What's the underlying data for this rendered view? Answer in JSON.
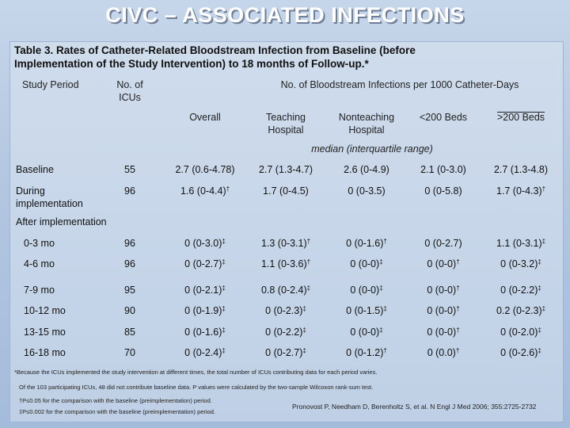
{
  "slide": {
    "title": "CIVC – ASSOCIATED INFECTIONS"
  },
  "table": {
    "caption_line1": "Table 3.  Rates of Catheter-Related Bloodstream Infection from Baseline (before",
    "caption_line2": "Implementation of the Study Intervention) to 18 months of Follow-up.*",
    "headers": {
      "study_period": "Study Period",
      "num_icus_line1": "No. of",
      "num_icus_line2": "ICUs",
      "group_title": "No. of Bloodstream Infections per 1000 Catheter-Days",
      "overall": "Overall",
      "teaching_line1": "Teaching",
      "teaching_line2": "Hospital",
      "nonteaching_line1": "Nonteaching",
      "nonteaching_line2": "Hospital",
      "lt200": "<200 Beds",
      "ge200": ">200 Beds",
      "median_note": "median (interquartile range)"
    },
    "section_after": "After implementation",
    "rows": [
      {
        "period": "Baseline",
        "icus": "55",
        "overall": "2.7 (0.6-4.78)",
        "teaching": "2.7 (1.3-4.7)",
        "nonteaching": "2.6 (0-4.9)",
        "lt200": "2.1 (0-3.0)",
        "ge200": "2.7 (1.3-4.8)"
      },
      {
        "period": "During",
        "period2": "implementation",
        "icus": "96",
        "overall": "1.6 (0-4.4)",
        "overall_mark": "†",
        "teaching": "1.7 (0-4.5)",
        "nonteaching": "0 (0-3.5)",
        "lt200": "0 (0-5.8)",
        "ge200": "1.7 (0-4.3)",
        "ge200_mark": "†"
      },
      {
        "period": "0-3 mo",
        "icus": "96",
        "overall": "0 (0-3.0)",
        "overall_mark": "‡",
        "teaching": "1.3 (0-3.1)",
        "teaching_mark": "†",
        "nonteaching": "0 (0-1.6)",
        "nonteaching_mark": "†",
        "lt200": "0 (0-2.7)",
        "ge200": "1.1 (0-3.1)",
        "ge200_mark": "‡"
      },
      {
        "period": "4-6 mo",
        "icus": "96",
        "overall": "0 (0-2.7)",
        "overall_mark": "‡",
        "teaching": "1.1 (0-3.6)",
        "teaching_mark": "†",
        "nonteaching": "0 (0-0)",
        "nonteaching_mark": "‡",
        "lt200": "0 (0-0)",
        "lt200_mark": "†",
        "ge200": "0 (0-3.2)",
        "ge200_mark": "‡"
      },
      {
        "period": "7-9 mo",
        "icus": "95",
        "overall": "0 (0-2.1)",
        "overall_mark": "‡",
        "teaching": "0.8 (0-2.4)",
        "teaching_mark": "‡",
        "nonteaching": "0 (0-0)",
        "nonteaching_mark": "‡",
        "lt200": "0 (0-0)",
        "lt200_mark": "†",
        "ge200": "0 (0-2.2)",
        "ge200_mark": "‡"
      },
      {
        "period": "10-12 mo",
        "icus": "90",
        "overall": "0 (0-1.9)",
        "overall_mark": "‡",
        "teaching": "0 (0-2.3)",
        "teaching_mark": "‡",
        "nonteaching": "0 (0-1.5)",
        "nonteaching_mark": "‡",
        "lt200": "0 (0-0)",
        "lt200_mark": "†",
        "ge200": "0.2 (0-2.3)",
        "ge200_mark": "‡"
      },
      {
        "period": "13-15 mo",
        "icus": "85",
        "overall": "0 (0-1.6)",
        "overall_mark": "‡",
        "teaching": "0 (0-2.2)",
        "teaching_mark": "‡",
        "nonteaching": "0 (0-0)",
        "nonteaching_mark": "‡",
        "lt200": "0 (0-0)",
        "lt200_mark": "†",
        "ge200": "0 (0-2.0)",
        "ge200_mark": "‡"
      },
      {
        "period": "16-18 mo",
        "icus": "70",
        "overall": "0 (0-2.4)",
        "overall_mark": "‡",
        "teaching": "0 (0-2.7)",
        "teaching_mark": "‡",
        "nonteaching": "0 (0-1.2)",
        "nonteaching_mark": "†",
        "lt200": "0 (0.0)",
        "lt200_mark": "†",
        "ge200": "0 (0-2.6)",
        "ge200_mark": "‡"
      }
    ],
    "footnotes": {
      "star": "*Because the ICUs implemented the study intervention at different times, the total number of ICUs contributing data for each period varies.",
      "participating": "Of the 103 participating ICUs, 48 did not contribute baseline data.  P values were calculated by the two-sample Wilcoxon rank-sum test.",
      "dagger": "†P≤0.05 for the comparison with the baseline (preimplementation) period.",
      "ddagger": "‡P≤0.002 for the comparison with the baseline (preimplementation) period."
    },
    "citation": "Pronovost P, Needham D, Berenholtz S, et al. N Engl J Med 2006; 355:2725-2732"
  }
}
